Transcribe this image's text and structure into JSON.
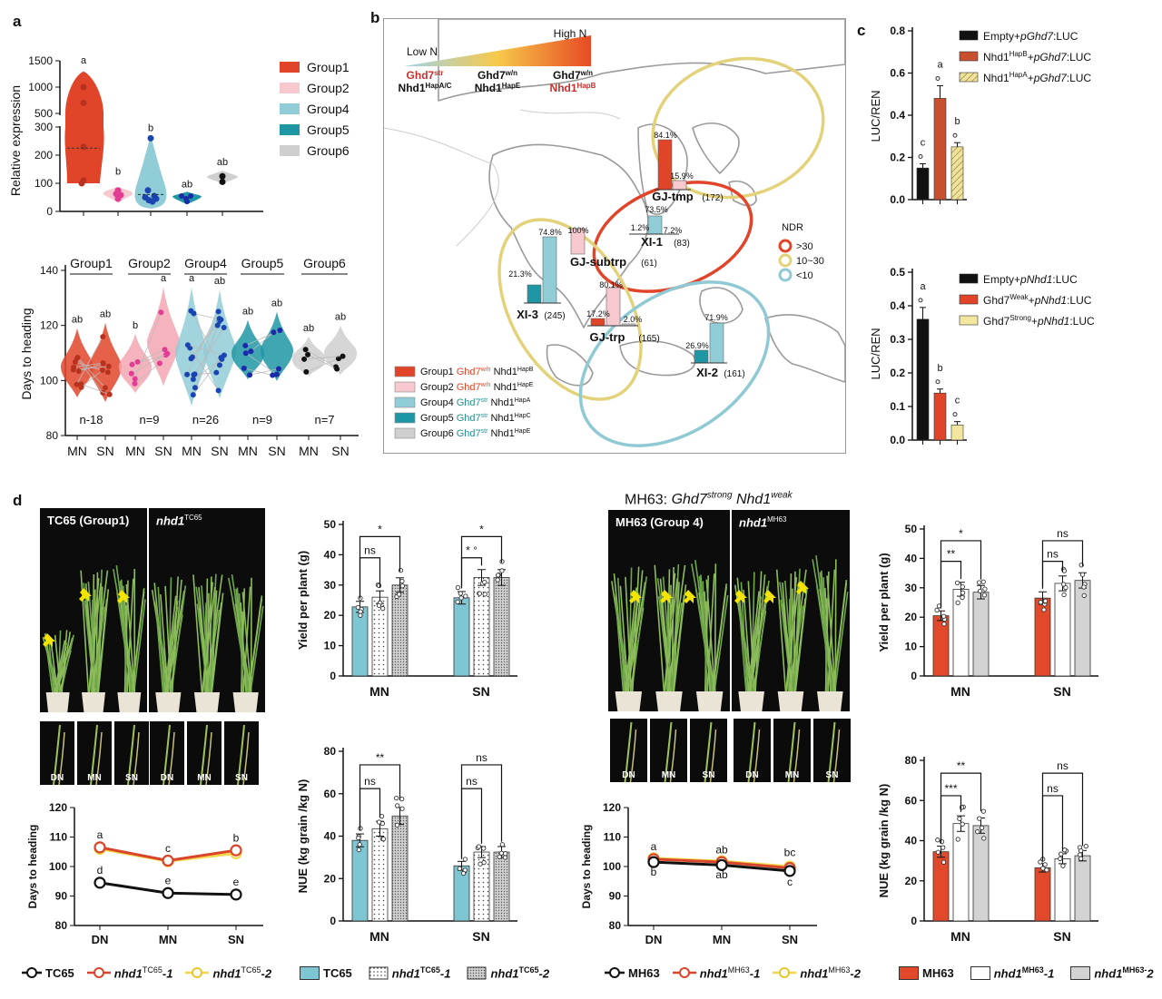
{
  "panel_labels": {
    "a": "a",
    "b": "b",
    "c": "c",
    "d": "d"
  },
  "colors": {
    "group1": "#e0452a",
    "group2": "#f7c9cf",
    "group4": "#91cdd6",
    "group5": "#1f96a3",
    "group6": "#cfcfcf",
    "tc65": "#7ec6d3",
    "black": "#111111",
    "ghd7w": "#d8452b",
    "ghd7s": "#2a8f8f",
    "yellow": "#f2d64b",
    "mh63": "#e2482a",
    "ndr_high": "#e0452a",
    "ndr_mid": "#e3d27a",
    "ndr_low": "#8fc9d4"
  },
  "panel_a_top": {
    "ylabel": "Relative expression",
    "yticks_upper": [
      "1500",
      "1000",
      "500"
    ],
    "yticks_lower": [
      "300",
      "200",
      "100",
      "0"
    ],
    "legend": [
      "Group1",
      "Group2",
      "Group4",
      "Group5",
      "Group6"
    ],
    "letters": [
      "a",
      "b",
      "b",
      "ab",
      "ab"
    ]
  },
  "panel_a_bottom": {
    "ylabel": "Days to heading",
    "yticks": [
      "140",
      "120",
      "100",
      "80"
    ],
    "groups": [
      "Group1",
      "Group2",
      "Group4",
      "Group5",
      "Group6"
    ],
    "n": [
      "n-18",
      "n=9",
      "n=26",
      "n=9",
      "n=7"
    ],
    "xlabels": [
      "MN",
      "SN",
      "MN",
      "SN",
      "MN",
      "SN",
      "MN",
      "SN",
      "MN",
      "SN"
    ],
    "letters": [
      "ab",
      "ab",
      "b",
      "a",
      "a",
      "ab",
      "ab",
      "ab",
      "ab",
      "ab"
    ]
  },
  "panel_b": {
    "low_n": "Low N",
    "high_n": "High N",
    "cols": [
      {
        "l1": "Ghd7",
        "s1": "str",
        "l2": "Nhd1",
        "s2": "HapA/C"
      },
      {
        "l1": "Ghd7",
        "s1": "w/n",
        "l2": "Nhd1",
        "s2": "HapE"
      },
      {
        "l1": "Ghd7",
        "s1": "w/n",
        "l2": "Nhd1",
        "s2": "HapB"
      }
    ],
    "regions": [
      {
        "name": "GJ-tmp",
        "n": "(172)",
        "p1": "84.1%",
        "p2": "15.9%"
      },
      {
        "name": "XI-1",
        "n": "(83)",
        "p1": "1.2%",
        "p2": "73.5%",
        "p3": "7.2%"
      },
      {
        "name": "GJ-subtrp",
        "n": "(61)",
        "p1": "100%"
      },
      {
        "name": "XI-3",
        "n": "(245)",
        "p1": "21.3%",
        "p2": "74.8%"
      },
      {
        "name": "GJ-trp",
        "n": "(165)",
        "p1": "17.2%",
        "p2": "80.1%",
        "p3": "2.0%"
      },
      {
        "name": "XI-2",
        "n": "(161)",
        "p1": "26.9%",
        "p2": "71.9%"
      }
    ],
    "ndr_title": "NDR",
    "ndr": [
      ">30",
      "10~30",
      "<10"
    ],
    "legend": [
      {
        "g": "Group1",
        "a": "Ghd7",
        "as": "w/n",
        "b": "Nhd1",
        "bs": "HapB"
      },
      {
        "g": "Group2",
        "a": "Ghd7",
        "as": "w/n",
        "b": "Nhd1",
        "bs": "HapE"
      },
      {
        "g": "Group4",
        "a": "Ghd7",
        "as": "str",
        "b": "Nhd1",
        "bs": "HapA"
      },
      {
        "g": "Group5",
        "a": "Ghd7",
        "as": "str",
        "b": "Nhd1",
        "bs": "HapC"
      },
      {
        "g": "Group6",
        "a": "Ghd7",
        "as": "str",
        "b": "Nhd1",
        "bs": "HapE"
      }
    ]
  },
  "panel_c": {
    "ylabel": "LUC/REN",
    "top": {
      "yticks": [
        "0.8",
        "0.6",
        "0.4",
        "0.2",
        "0.0"
      ],
      "letters": [
        "c",
        "a",
        "b"
      ],
      "legend": [
        {
          "pre": "Empty+",
          "it": "pGhd7",
          "post": ":LUC"
        },
        {
          "pre": "Nhd1",
          "sup": "HapB",
          "mid": "+",
          "it": "pGhd7",
          "post": ":LUC"
        },
        {
          "pre": "Nhd1",
          "sup": "HapA",
          "mid": "+",
          "it": "pGhd7",
          "post": ":LUC"
        }
      ]
    },
    "bottom": {
      "yticks": [
        "0.5",
        "0.4",
        "0.3",
        "0.2",
        "0.1",
        "0.0"
      ],
      "letters": [
        "a",
        "b",
        "c"
      ],
      "legend": [
        {
          "pre": "Empty+",
          "it": "pNhd1",
          "post": ":LUC"
        },
        {
          "pre": "Ghd7",
          "sup": "Weak",
          "mid": "+",
          "it": "pNhd1",
          "post": ":LUC"
        },
        {
          "pre": "Ghd7",
          "sup": "Strong",
          "mid": "+",
          "it": "pNhd1",
          "post": ":LUC"
        }
      ]
    }
  },
  "panel_d": {
    "photo_left_1": "TC65 (Group1)",
    "photo_left_2_a": "nhd1",
    "photo_left_2_sup": "TC65",
    "photo_right_1": "MH63 (Group 4)",
    "photo_right_2_a": "nhd1",
    "photo_right_2_sup": "MH63",
    "strip_labels": [
      "DN",
      "MN",
      "SN"
    ],
    "mh63_title": "MH63: ",
    "mh63_title_it": "Ghd7strong Nhd1weak",
    "yield_ylabel": "Yield per plant (g)",
    "nue_ylabel": "NUE (kg grain /kg N)",
    "dth_ylabel": "Days to heading",
    "yield_ticks": [
      "50",
      "40",
      "30",
      "20",
      "10",
      "0"
    ],
    "nue_ticks": [
      "80",
      "60",
      "40",
      "20",
      "0"
    ],
    "dth_ticks": [
      "120",
      "110",
      "100",
      "90",
      "80"
    ],
    "xcats": [
      "MN",
      "SN"
    ],
    "dth_x": [
      "DN",
      "MN",
      "SN"
    ],
    "sig_tc65_yield": [
      "*",
      "ns",
      "*",
      "* °"
    ],
    "sig_tc65_nue": [
      "**",
      "ns",
      "ns",
      "ns"
    ],
    "sig_mh63_yield": [
      "*",
      "**",
      "ns",
      "ns"
    ],
    "sig_mh63_nue": [
      "**",
      "***",
      "ns",
      "ns"
    ],
    "tc65_dth_letters": [
      "a",
      "c",
      "b",
      "d",
      "e",
      "e"
    ],
    "mh63_dth_letters": [
      "a",
      "ab",
      "bc",
      "b",
      "ab",
      "c"
    ],
    "legend_tc65_lines": [
      "TC65",
      "nhd1",
      "TC65",
      "-1",
      "nhd1",
      "TC65",
      "-2"
    ],
    "legend_tc65_bars": [
      "TC65",
      "nhd1",
      "TC65",
      "-1",
      "nhd1",
      "TC65",
      "-2"
    ],
    "legend_mh63_lines": [
      "MH63",
      "nhd1",
      "MH63",
      "-1",
      "nhd1",
      "MH63",
      "-2"
    ],
    "legend_mh63_bars": [
      "MH63",
      "nhd1",
      "MH63",
      "-1",
      "nhd1",
      "MH63-",
      "2"
    ]
  },
  "chart_data": [
    {
      "type": "violin",
      "title": "",
      "xlabel": "",
      "ylabel": "Relative expression",
      "categories": [
        "Group1",
        "Group2",
        "Group4",
        "Group5",
        "Group6"
      ],
      "values": [
        230,
        60,
        80,
        50,
        120
      ]
    },
    {
      "type": "violin",
      "title": "",
      "ylabel": "Days to heading",
      "categories": [
        "Group1 MN",
        "Group1 SN",
        "Group2 MN",
        "Group2 SN",
        "Group4 MN",
        "Group4 SN",
        "Group5 MN",
        "Group5 SN",
        "Group6 MN",
        "Group6 SN"
      ],
      "values": [
        105,
        105,
        105,
        114,
        110,
        111,
        110,
        111,
        108,
        110
      ],
      "ylim": [
        80,
        140
      ]
    },
    {
      "type": "bar",
      "ylabel": "LUC/REN",
      "categories": [
        "Empty+pGhd7:LUC",
        "Nhd1HapB+pGhd7:LUC",
        "Nhd1HapA+pGhd7:LUC"
      ],
      "values": [
        0.15,
        0.48,
        0.25
      ],
      "errors": [
        0.02,
        0.06,
        0.02
      ],
      "ylim": [
        0,
        0.8
      ]
    },
    {
      "type": "bar",
      "ylabel": "LUC/REN",
      "categories": [
        "Empty+pNhd1:LUC",
        "Ghd7Weak+pNhd1:LUC",
        "Ghd7Strong+pNhd1:LUC"
      ],
      "values": [
        0.36,
        0.14,
        0.045
      ],
      "errors": [
        0.035,
        0.012,
        0.01
      ],
      "ylim": [
        0,
        0.5
      ]
    },
    {
      "type": "bar",
      "ylabel": "Yield per plant (g)",
      "categories": [
        "MN",
        "SN"
      ],
      "series": [
        {
          "name": "TC65",
          "values": [
            22.8,
            25.8
          ]
        },
        {
          "name": "nhd1TC65-1",
          "values": [
            26,
            32.5
          ]
        },
        {
          "name": "nhd1TC65-2",
          "values": [
            30,
            32.5
          ]
        }
      ],
      "ylim": [
        0,
        50
      ]
    },
    {
      "type": "bar",
      "ylabel": "NUE (kg grain /kg N)",
      "categories": [
        "MN",
        "SN"
      ],
      "series": [
        {
          "name": "TC65",
          "values": [
            38,
            26
          ]
        },
        {
          "name": "nhd1TC65-1",
          "values": [
            43.5,
            32.5
          ]
        },
        {
          "name": "nhd1TC65-2",
          "values": [
            49.5,
            32.5
          ]
        }
      ],
      "ylim": [
        0,
        80
      ]
    },
    {
      "type": "line",
      "ylabel": "Days to heading",
      "x": [
        "DN",
        "MN",
        "SN"
      ],
      "series": [
        {
          "name": "TC65",
          "values": [
            94.5,
            91,
            90.5
          ]
        },
        {
          "name": "nhd1TC65-1",
          "values": [
            106.5,
            102,
            105.5
          ]
        },
        {
          "name": "nhd1TC65-2",
          "values": [
            106,
            101.8,
            104.5
          ]
        }
      ],
      "ylim": [
        80,
        120
      ]
    },
    {
      "type": "bar",
      "ylabel": "Yield per plant (g)",
      "categories": [
        "MN",
        "SN"
      ],
      "series": [
        {
          "name": "MH63",
          "values": [
            20.5,
            26.5
          ]
        },
        {
          "name": "nhd1MH63-1",
          "values": [
            29.5,
            31.5
          ]
        },
        {
          "name": "nhd1MH63-2",
          "values": [
            28.5,
            32.5
          ]
        }
      ],
      "ylim": [
        0,
        50
      ]
    },
    {
      "type": "bar",
      "ylabel": "NUE (kg grain /kg N)",
      "categories": [
        "MN",
        "SN"
      ],
      "series": [
        {
          "name": "MH63",
          "values": [
            34.5,
            26.5
          ]
        },
        {
          "name": "nhd1MH63-1",
          "values": [
            48.5,
            31
          ]
        },
        {
          "name": "nhd1MH63-2",
          "values": [
            47.5,
            32.5
          ]
        }
      ],
      "ylim": [
        0,
        80
      ]
    },
    {
      "type": "line",
      "ylabel": "Days to heading",
      "x": [
        "DN",
        "MN",
        "SN"
      ],
      "series": [
        {
          "name": "MH63",
          "values": [
            101.5,
            100.5,
            98.5
          ]
        },
        {
          "name": "nhd1MH63-1",
          "values": [
            102.5,
            101.5,
            99.5
          ]
        },
        {
          "name": "nhd1MH63-2",
          "values": [
            102.8,
            101.8,
            100
          ]
        }
      ],
      "ylim": [
        80,
        120
      ]
    }
  ]
}
